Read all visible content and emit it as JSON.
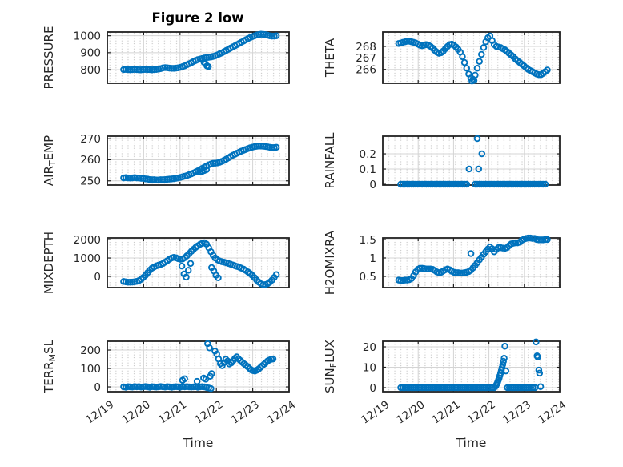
{
  "title": "Figure 2 low",
  "xlabel": "Time",
  "x_axis": {
    "tick_labels": [
      "12/19",
      "12/20",
      "12/21",
      "12/22",
      "12/23",
      "12/24"
    ],
    "lim_days": [
      0,
      5
    ]
  },
  "colors": {
    "marker": "#0072BD",
    "axis": "#212121",
    "tick_label": "#262626",
    "grid": "#d4d4d4",
    "minor_dot": "#c9c9c9",
    "title": "#000000"
  },
  "chart_data": [
    {
      "id": "pressure",
      "position": "row1-left",
      "type": "scatter",
      "ylabel": "PRESSURE",
      "ylabel_parts": [
        {
          "text": "PRESSURE",
          "sub": false
        }
      ],
      "yticks": [
        800,
        900,
        1000
      ],
      "ylim": [
        720,
        1022
      ],
      "runs": [
        {
          "t0": 0.45,
          "dt": 0.06,
          "y": [
            800,
            801,
            800,
            799,
            800,
            801,
            800,
            799,
            799,
            800,
            801,
            800,
            800,
            799,
            800,
            801,
            803,
            806,
            810,
            812,
            811,
            809,
            808,
            808,
            809,
            811,
            814,
            818,
            823,
            829,
            835,
            841,
            848,
            854,
            859,
            863,
            866,
            869,
            871,
            873,
            875,
            878,
            882,
            887,
            893,
            899,
            906,
            913,
            920,
            927,
            934,
            941,
            948,
            955,
            962,
            969,
            976,
            983,
            989,
            995,
            1000,
            1004,
            1007,
            1009,
            1008,
            1006,
            1003,
            1000,
            998,
            998,
            1000
          ]
        }
      ],
      "pts": [
        [
          2.66,
          843
        ],
        [
          2.7,
          835
        ],
        [
          2.74,
          822
        ],
        [
          2.78,
          818
        ]
      ]
    },
    {
      "id": "theta",
      "position": "row1-right",
      "type": "scatter",
      "ylabel": "THETA",
      "ylabel_parts": [
        {
          "text": "THETA",
          "sub": false
        }
      ],
      "yticks": [
        266,
        267,
        268
      ],
      "ylim": [
        264.8,
        269.25
      ],
      "runs": [
        {
          "t0": 0.45,
          "dt": 0.06,
          "y": [
            268.25,
            268.3,
            268.35,
            268.4,
            268.45,
            268.45,
            268.4,
            268.35,
            268.3,
            268.2,
            268.1,
            268.05,
            268.1,
            268.15,
            268.1,
            268.0,
            267.85,
            267.65,
            267.5,
            267.4,
            267.45,
            267.6,
            267.8,
            268.0,
            268.15,
            268.2,
            268.1,
            267.95,
            267.75,
            267.5,
            267.1,
            266.6,
            266.1,
            265.6,
            265.25,
            265.15,
            265.5,
            266.1,
            266.7,
            267.3,
            267.9,
            268.4,
            268.75,
            268.9,
            268.5,
            268.15,
            268.0,
            267.95,
            267.9,
            267.8,
            267.7,
            267.55,
            267.4,
            267.25,
            267.1,
            266.9,
            266.75,
            266.6,
            266.45,
            266.3,
            266.15,
            266.0,
            265.9,
            265.8,
            265.7,
            265.6,
            265.55,
            265.55,
            265.65,
            265.8,
            265.95
          ]
        }
      ],
      "pts": [
        [
          2.52,
          265.0
        ],
        [
          2.58,
          265.05
        ]
      ]
    },
    {
      "id": "air-temp",
      "position": "row2-left",
      "type": "scatter",
      "ylabel": "AIR_TEMP",
      "ylabel_parts": [
        {
          "text": "AIR",
          "sub": false
        },
        {
          "text": "T",
          "sub": true
        },
        {
          "text": "EMP",
          "sub": false
        }
      ],
      "yticks": [
        250,
        260,
        270
      ],
      "ylim": [
        248,
        271.2
      ],
      "runs": [
        {
          "t0": 0.45,
          "dt": 0.06,
          "y": [
            251.4,
            251.5,
            251.4,
            251.3,
            251.4,
            251.5,
            251.4,
            251.3,
            251.2,
            251.1,
            250.9,
            250.8,
            250.6,
            250.5,
            250.5,
            250.4,
            250.4,
            250.5,
            250.5,
            250.6,
            250.7,
            250.8,
            250.9,
            251.0,
            251.2,
            251.4,
            251.6,
            251.9,
            252.2,
            252.5,
            252.9,
            253.3,
            253.7,
            254.2,
            254.7,
            255.3,
            255.9,
            256.5,
            257.1,
            257.6,
            258.0,
            258.3,
            258.4,
            258.5,
            258.8,
            259.2,
            259.7,
            260.3,
            260.9,
            261.5,
            262.1,
            262.6,
            263.1,
            263.6,
            264.1,
            264.5,
            264.9,
            265.3,
            265.7,
            266.0,
            266.2,
            266.4,
            266.5,
            266.5,
            266.4,
            266.3,
            266.1,
            265.9,
            265.8,
            265.8,
            265.9
          ]
        }
      ],
      "pts": [
        [
          2.55,
          254.2
        ],
        [
          2.61,
          254.5
        ],
        [
          2.67,
          254.9
        ],
        [
          2.73,
          255.3
        ]
      ]
    },
    {
      "id": "rainfall",
      "position": "row2-right",
      "type": "scatter",
      "ylabel": "RAINFALL",
      "ylabel_parts": [
        {
          "text": "RAINFALL",
          "sub": false
        }
      ],
      "yticks": [
        0,
        0.1,
        0.2
      ],
      "ylim": [
        -0.005,
        0.316
      ],
      "runs": [
        {
          "t0": 0.51,
          "dt": 0.06,
          "n": 32,
          "value": 0
        },
        {
          "t0": 2.61,
          "dt": 0.06,
          "n": 34,
          "value": 0
        }
      ],
      "pts": [
        [
          2.44,
          0.1
        ],
        [
          2.67,
          0.3
        ],
        [
          2.71,
          0.1
        ],
        [
          2.8,
          0.2
        ]
      ]
    },
    {
      "id": "mixdepth",
      "position": "row3-left",
      "type": "scatter",
      "ylabel": "MIXDEPTH",
      "ylabel_parts": [
        {
          "text": "MIXDEPTH",
          "sub": false
        }
      ],
      "yticks": [
        0,
        1000,
        2000
      ],
      "ylim": [
        -610,
        2090
      ],
      "runs": [
        {
          "t0": 0.45,
          "dt": 0.06,
          "y": [
            -280,
            -300,
            -315,
            -320,
            -310,
            -295,
            -270,
            -230,
            -160,
            -60,
            60,
            200,
            340,
            450,
            520,
            570,
            610,
            650,
            700,
            770,
            850,
            930,
            1000,
            1030,
            1010,
            960,
            930,
            950,
            1020,
            1120,
            1240,
            1360,
            1470,
            1570,
            1660,
            1740,
            1800,
            1830,
            1750,
            1560,
            1340,
            1150,
            1000,
            900,
            840,
            800,
            770,
            740,
            700,
            660,
            620,
            580,
            540,
            500,
            450,
            390,
            320,
            240,
            150,
            50,
            -70,
            -200,
            -320,
            -410,
            -455,
            -450,
            -400,
            -320,
            -200,
            -60,
            100
          ]
        }
      ],
      "pts": [
        [
          2.05,
          560
        ],
        [
          2.11,
          130
        ],
        [
          2.17,
          -40
        ],
        [
          2.23,
          330
        ],
        [
          2.29,
          700
        ],
        [
          2.87,
          480
        ],
        [
          2.93,
          300
        ],
        [
          2.99,
          60
        ],
        [
          3.05,
          -80
        ]
      ]
    },
    {
      "id": "h2omixra",
      "position": "row3-right",
      "type": "scatter",
      "ylabel": "H2OMIXRA",
      "ylabel_parts": [
        {
          "text": "H2OMIXRA",
          "sub": false
        }
      ],
      "yticks": [
        0.5,
        1,
        1.5
      ],
      "ylim": [
        0.196,
        1.543
      ],
      "runs": [
        {
          "t0": 0.45,
          "dt": 0.06,
          "y": [
            0.4,
            0.39,
            0.39,
            0.4,
            0.4,
            0.41,
            0.44,
            0.52,
            0.62,
            0.69,
            0.72,
            0.72,
            0.71,
            0.7,
            0.7,
            0.7,
            0.69,
            0.66,
            0.62,
            0.6,
            0.61,
            0.65,
            0.68,
            0.7,
            0.68,
            0.64,
            0.61,
            0.6,
            0.6,
            0.59,
            0.59,
            0.6,
            0.61,
            0.63,
            0.67,
            0.73,
            0.8,
            0.87,
            0.95,
            1.02,
            1.1,
            1.17,
            1.24,
            1.3,
            1.25,
            1.17,
            1.23,
            1.28,
            1.28,
            1.27,
            1.26,
            1.28,
            1.33,
            1.38,
            1.4,
            1.41,
            1.41,
            1.43,
            1.48,
            1.51,
            1.53,
            1.54,
            1.54,
            1.53,
            1.53,
            1.5,
            1.49,
            1.49,
            1.49,
            1.5,
            1.5
          ]
        }
      ],
      "pts": [
        [
          2.49,
          1.12
        ]
      ]
    },
    {
      "id": "terr-msl",
      "position": "row4-left",
      "type": "scatter",
      "ylabel": "TERR_MSL",
      "ylabel_parts": [
        {
          "text": "TERR",
          "sub": false
        },
        {
          "text": "M",
          "sub": true
        },
        {
          "text": "SL",
          "sub": false
        }
      ],
      "yticks": [
        0,
        100,
        200
      ],
      "ylim": [
        -26,
        248
      ],
      "runs": [
        {
          "t0": 0.45,
          "dt": 0.06,
          "y": [
            0,
            -2,
            1,
            0,
            -1,
            2,
            0,
            1,
            -1,
            0,
            2,
            0,
            -2,
            1,
            0,
            -1,
            0,
            2,
            0,
            -1,
            1,
            0,
            -2,
            0,
            1,
            0,
            -1,
            2,
            0,
            1,
            0,
            -1,
            0,
            1,
            -2,
            0,
            1,
            0,
            -3,
            -6,
            -9
          ]
        },
        {
          "t0": 2.96,
          "dt": 0.05,
          "y": [
            195,
            178,
            152,
            126,
            115,
            132,
            150,
            140,
            124,
            130,
            142,
            155,
            163,
            152,
            143,
            134,
            126,
            118,
            110,
            100,
            92,
            88,
            86,
            90,
            97,
            105,
            114,
            123,
            132,
            140,
            146,
            150,
            152
          ]
        }
      ],
      "pts": [
        [
          2.07,
          36
        ],
        [
          2.13,
          44
        ],
        [
          2.47,
          30
        ],
        [
          2.65,
          48
        ],
        [
          2.71,
          42
        ],
        [
          2.76,
          235
        ],
        [
          2.81,
          212
        ],
        [
          2.83,
          58
        ],
        [
          2.87,
          72
        ]
      ]
    },
    {
      "id": "sun-flux",
      "position": "row4-right",
      "type": "scatter",
      "ylabel": "SUN_FLUX",
      "ylabel_parts": [
        {
          "text": "SUN",
          "sub": false
        },
        {
          "text": "F",
          "sub": true
        },
        {
          "text": "LUX",
          "sub": false
        }
      ],
      "yticks": [
        0,
        10,
        20
      ],
      "ylim": [
        -1.96,
        22.75
      ],
      "runs": [
        {
          "t0": 0.51,
          "dt": 0.06,
          "n": 45,
          "value": 0
        },
        {
          "t0": 3.52,
          "dt": 0.06,
          "n": 14,
          "value": 0
        }
      ],
      "pts": [
        [
          3.19,
          0.7
        ],
        [
          3.21,
          1.4
        ],
        [
          3.23,
          2.1
        ],
        [
          3.25,
          2.9
        ],
        [
          3.27,
          3.8
        ],
        [
          3.29,
          4.8
        ],
        [
          3.31,
          5.9
        ],
        [
          3.33,
          7.1
        ],
        [
          3.35,
          8.4
        ],
        [
          3.37,
          9.8
        ],
        [
          3.39,
          11.3
        ],
        [
          3.41,
          12.9
        ],
        [
          3.43,
          14.4
        ],
        [
          3.45,
          20.3
        ],
        [
          3.48,
          8.2
        ],
        [
          4.33,
          22.4
        ],
        [
          4.36,
          15.6
        ],
        [
          4.38,
          15.0
        ],
        [
          4.41,
          8.6
        ],
        [
          4.43,
          7.1
        ],
        [
          4.46,
          0.5
        ]
      ]
    }
  ]
}
